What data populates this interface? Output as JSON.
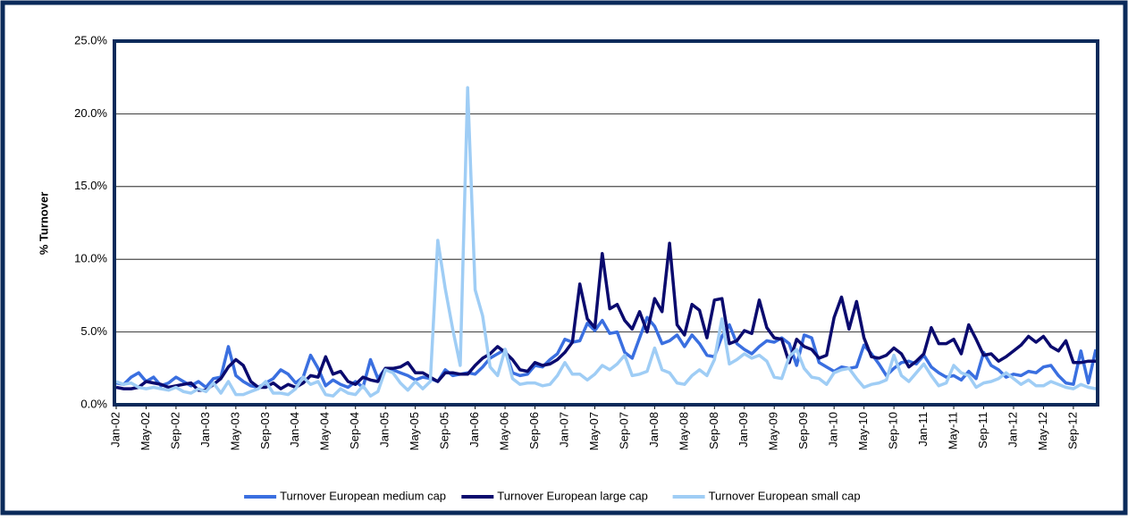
{
  "chart_data": {
    "type": "line",
    "y_label": "% Turnover",
    "categories": [
      "Jan-02",
      null,
      null,
      null,
      "May-02",
      null,
      null,
      null,
      "Sep-02",
      null,
      null,
      null,
      "Jan-03",
      null,
      null,
      null,
      "May-03",
      null,
      null,
      null,
      "Sep-03",
      null,
      null,
      null,
      "Jan-04",
      null,
      null,
      null,
      "May-04",
      null,
      null,
      null,
      "Sep-04",
      null,
      null,
      null,
      "Jan-05",
      null,
      null,
      null,
      "May-05",
      null,
      null,
      null,
      "Sep-05",
      null,
      null,
      null,
      "Jan-06",
      null,
      null,
      null,
      "May-06",
      null,
      null,
      null,
      "Sep-06",
      null,
      null,
      null,
      "Jan-07",
      null,
      null,
      null,
      "May-07",
      null,
      null,
      null,
      "Sep-07",
      null,
      null,
      null,
      "Jan-08",
      null,
      null,
      null,
      "May-08",
      null,
      null,
      null,
      "Sep-08",
      null,
      null,
      null,
      "Jan-09",
      null,
      null,
      null,
      "May-09",
      null,
      null,
      null,
      "Sep-09",
      null,
      null,
      null,
      "Jan-10",
      null,
      null,
      null,
      "May-10",
      null,
      null,
      null,
      "Sep-10",
      null,
      null,
      null,
      "Jan-11",
      null,
      null,
      null,
      "May-11",
      null,
      null,
      null,
      "Sep-11",
      null,
      null,
      null,
      "Jan-12",
      null,
      null,
      null,
      "May-12",
      null,
      null,
      null,
      "Sep-12",
      null,
      null,
      null
    ],
    "series": [
      {
        "name": "Turnover European medium cap",
        "color": "#3a6fe0",
        "values": [
          1.5,
          1.4,
          1.9,
          2.2,
          1.6,
          1.9,
          1.3,
          1.5,
          1.9,
          1.6,
          1.3,
          1.6,
          1.2,
          1.8,
          1.9,
          4.0,
          2.0,
          1.6,
          1.3,
          1.2,
          1.5,
          1.8,
          2.4,
          2.1,
          1.5,
          1.9,
          3.4,
          2.5,
          1.3,
          1.7,
          1.4,
          1.2,
          1.6,
          1.2,
          3.1,
          1.8,
          2.5,
          2.4,
          2.2,
          2.0,
          1.7,
          1.9,
          1.8,
          1.6,
          2.4,
          2.0,
          2.1,
          2.2,
          2.1,
          2.6,
          3.2,
          3.5,
          3.8,
          2.2,
          2.0,
          2.1,
          2.7,
          2.6,
          3.1,
          3.5,
          4.5,
          4.3,
          4.4,
          5.6,
          5.1,
          5.8,
          4.9,
          5.0,
          3.6,
          3.2,
          4.6,
          6.0,
          5.4,
          4.2,
          4.4,
          4.8,
          4.0,
          4.8,
          4.2,
          3.4,
          3.3,
          4.7,
          5.5,
          4.2,
          3.8,
          3.5,
          4.0,
          4.4,
          4.3,
          4.6,
          4.2,
          2.7,
          4.8,
          4.6,
          2.9,
          2.6,
          2.3,
          2.6,
          2.5,
          2.6,
          4.1,
          3.5,
          2.8,
          2.0,
          2.5,
          2.9,
          3.0,
          2.8,
          3.4,
          2.6,
          2.2,
          1.9,
          2.0,
          1.7,
          2.3,
          1.8,
          3.6,
          2.7,
          2.4,
          1.9,
          2.1,
          2.0,
          2.3,
          2.2,
          2.6,
          2.7,
          2.0,
          1.5,
          1.4,
          3.7,
          1.5,
          3.8
        ]
      },
      {
        "name": "Turnover European large cap",
        "color": "#0a0a6e",
        "values": [
          1.2,
          1.1,
          1.1,
          1.2,
          1.6,
          1.5,
          1.4,
          1.2,
          1.3,
          1.4,
          1.5,
          1.0,
          1.0,
          1.4,
          1.8,
          2.6,
          3.1,
          2.7,
          1.6,
          1.2,
          1.2,
          1.5,
          1.1,
          1.4,
          1.2,
          1.5,
          2.0,
          1.9,
          3.3,
          2.1,
          2.3,
          1.6,
          1.4,
          1.9,
          1.7,
          1.6,
          2.5,
          2.5,
          2.6,
          2.9,
          2.2,
          2.2,
          1.9,
          1.6,
          2.2,
          2.2,
          2.1,
          2.1,
          2.7,
          3.2,
          3.5,
          4.0,
          3.6,
          3.1,
          2.4,
          2.3,
          2.9,
          2.7,
          2.8,
          3.1,
          3.6,
          4.3,
          8.3,
          5.9,
          5.3,
          10.4,
          6.6,
          6.9,
          5.8,
          5.2,
          6.4,
          5.0,
          7.3,
          6.4,
          11.1,
          5.5,
          4.8,
          6.9,
          6.5,
          4.6,
          7.2,
          7.3,
          4.2,
          4.4,
          5.1,
          4.9,
          7.2,
          5.3,
          4.6,
          4.5,
          2.9,
          4.5,
          4.0,
          3.8,
          3.2,
          3.4,
          6.0,
          7.4,
          5.2,
          7.1,
          4.6,
          3.3,
          3.2,
          3.4,
          3.9,
          3.5,
          2.6,
          3.0,
          3.5,
          5.3,
          4.2,
          4.2,
          4.5,
          3.5,
          5.5,
          4.5,
          3.4,
          3.5,
          3.0,
          3.3,
          3.7,
          4.1,
          4.7,
          4.3,
          4.7,
          4.0,
          3.7,
          4.4,
          2.9,
          2.9,
          3.0,
          3.0
        ]
      },
      {
        "name": "Turnover European small cap",
        "color": "#9fcdf5",
        "values": [
          1.6,
          1.4,
          1.5,
          1.2,
          1.1,
          1.2,
          1.1,
          1.0,
          1.2,
          0.9,
          0.8,
          1.1,
          0.9,
          1.5,
          0.8,
          1.6,
          0.7,
          0.7,
          0.9,
          1.1,
          1.6,
          0.8,
          0.8,
          0.7,
          1.1,
          1.9,
          1.4,
          1.6,
          0.7,
          0.6,
          1.1,
          0.8,
          0.7,
          1.3,
          0.6,
          0.9,
          2.4,
          2.2,
          1.5,
          1.0,
          1.6,
          1.1,
          1.6,
          11.3,
          8.0,
          5.2,
          2.7,
          21.8,
          7.9,
          6.1,
          2.6,
          2.0,
          3.8,
          1.8,
          1.4,
          1.5,
          1.5,
          1.3,
          1.4,
          2.0,
          2.9,
          2.1,
          2.1,
          1.7,
          2.1,
          2.7,
          2.4,
          2.8,
          3.4,
          2.0,
          2.1,
          2.3,
          3.9,
          2.4,
          2.2,
          1.5,
          1.4,
          2.0,
          2.4,
          2.0,
          3.1,
          5.9,
          2.8,
          3.1,
          3.5,
          3.2,
          3.4,
          3.0,
          1.9,
          1.8,
          3.3,
          3.8,
          2.5,
          1.9,
          1.8,
          1.4,
          2.2,
          2.4,
          2.5,
          1.8,
          1.2,
          1.4,
          1.5,
          1.7,
          3.4,
          2.0,
          1.6,
          2.2,
          2.8,
          2.0,
          1.3,
          1.5,
          2.7,
          2.2,
          2.0,
          1.2,
          1.5,
          1.6,
          1.8,
          2.2,
          1.8,
          1.4,
          1.7,
          1.3,
          1.3,
          1.6,
          1.4,
          1.2,
          1.1,
          1.4,
          1.2,
          1.1
        ]
      }
    ],
    "ylim": [
      0,
      25
    ],
    "yticks": [
      {
        "value": 0,
        "label": "0.0%"
      },
      {
        "value": 5,
        "label": "5.0%"
      },
      {
        "value": 10,
        "label": "10.0%"
      },
      {
        "value": 15,
        "label": "15.0%"
      },
      {
        "value": 20,
        "label": "20.0%"
      },
      {
        "value": 25,
        "label": "25.0%"
      }
    ],
    "grid": true,
    "legend": "bottom"
  }
}
